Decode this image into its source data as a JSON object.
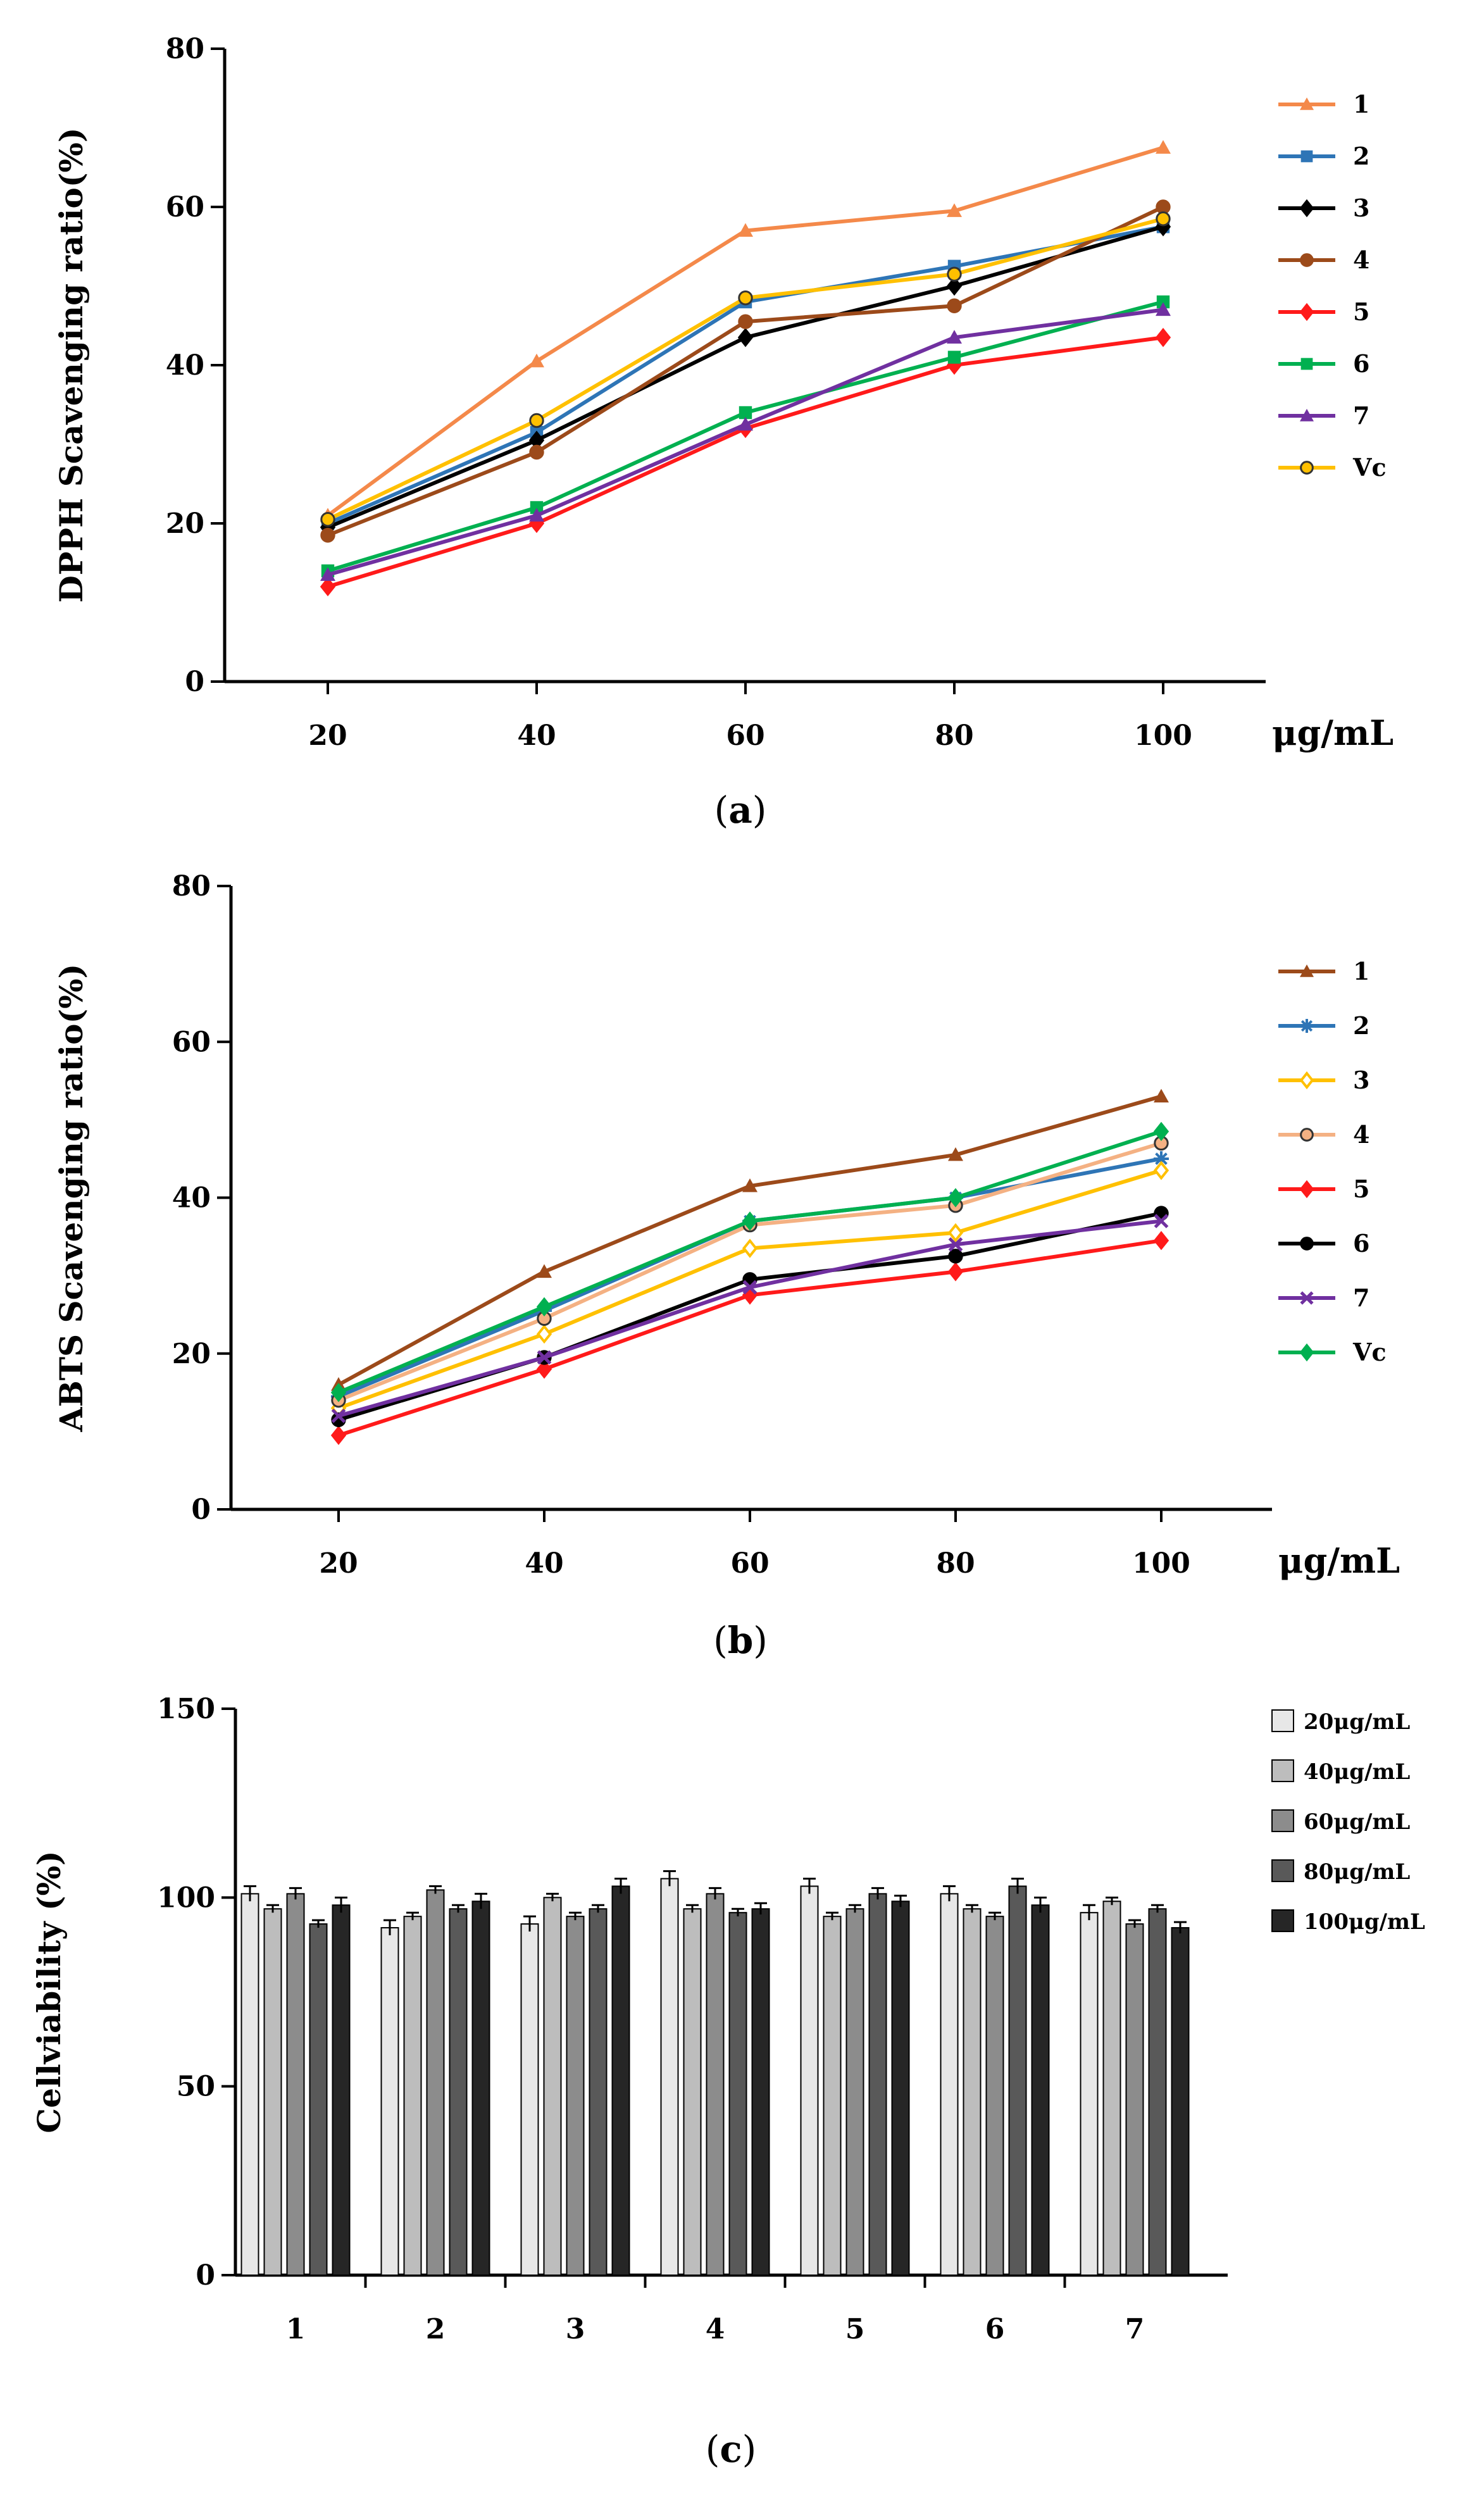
{
  "chart_data": [
    {
      "id": "a",
      "type": "line",
      "caption": "a",
      "ylabel": "DPPH Scavenging ratio(%)",
      "xlabel": "μg/mL",
      "x": [
        20,
        40,
        60,
        80,
        100
      ],
      "ylim": [
        0,
        80
      ],
      "yticks": [
        0,
        20,
        40,
        60,
        80
      ],
      "xticks": [
        "20",
        "40",
        "60",
        "80",
        "100"
      ],
      "legend_position": "right",
      "series": [
        {
          "name": "1",
          "color": "#F4894A",
          "marker": "triangle",
          "values": [
            21,
            40.5,
            57,
            59.5,
            67.5
          ]
        },
        {
          "name": "2",
          "color": "#2E75B6",
          "marker": "square",
          "values": [
            20,
            31.5,
            48,
            52.5,
            57.5
          ]
        },
        {
          "name": "3",
          "color": "#000000",
          "marker": "diamond",
          "values": [
            19.5,
            30.5,
            43.5,
            50,
            57.5
          ]
        },
        {
          "name": "4",
          "color": "#9C4A1A",
          "marker": "circle",
          "values": [
            18.5,
            29,
            45.5,
            47.5,
            60
          ]
        },
        {
          "name": "5",
          "color": "#FF1A1A",
          "marker": "diamond",
          "values": [
            12,
            20,
            32,
            40,
            43.5
          ]
        },
        {
          "name": "6",
          "color": "#00B050",
          "marker": "square",
          "values": [
            14,
            22,
            34,
            41,
            48
          ]
        },
        {
          "name": "7",
          "color": "#7030A0",
          "marker": "triangle",
          "values": [
            13.5,
            21,
            32.5,
            43.5,
            47
          ]
        },
        {
          "name": "Vc",
          "color": "#FFC000",
          "marker": "circle",
          "values": [
            20.5,
            33,
            48.5,
            51.5,
            58.5
          ]
        }
      ]
    },
    {
      "id": "b",
      "type": "line",
      "caption": "b",
      "ylabel": "ABTS Scavenging ratio(%)",
      "xlabel": "μg/mL",
      "x": [
        20,
        40,
        60,
        80,
        100
      ],
      "ylim": [
        0,
        80
      ],
      "yticks": [
        0,
        20,
        40,
        60,
        80
      ],
      "xticks": [
        "20",
        "40",
        "60",
        "80",
        "100"
      ],
      "legend_position": "right",
      "series": [
        {
          "name": "1",
          "color": "#9C4A1A",
          "marker": "triangle",
          "values": [
            16,
            30.5,
            41.5,
            45.5,
            53
          ]
        },
        {
          "name": "2",
          "color": "#2E75B6",
          "marker": "star",
          "values": [
            14.5,
            25.5,
            37,
            40,
            45
          ]
        },
        {
          "name": "3",
          "color": "#FFC000",
          "marker": "diamond",
          "values": [
            13,
            22.5,
            33.5,
            35.5,
            43.5
          ]
        },
        {
          "name": "4",
          "color": "#F4B183",
          "marker": "circle",
          "values": [
            14,
            24.5,
            36.5,
            39,
            47
          ]
        },
        {
          "name": "5",
          "color": "#FF1A1A",
          "marker": "diamond",
          "values": [
            9.5,
            18,
            27.5,
            30.5,
            34.5
          ]
        },
        {
          "name": "6",
          "color": "#000000",
          "marker": "circle",
          "values": [
            11.5,
            19.5,
            29.5,
            32.5,
            38
          ]
        },
        {
          "name": "7",
          "color": "#7030A0",
          "marker": "x",
          "values": [
            12,
            19.5,
            28.5,
            34,
            37
          ]
        },
        {
          "name": "Vc",
          "color": "#00B050",
          "marker": "diamond",
          "values": [
            15,
            26,
            37,
            40,
            48.5
          ]
        }
      ]
    },
    {
      "id": "c",
      "type": "bar",
      "caption": "c",
      "ylabel": "Cellviability (%)",
      "categories": [
        "1",
        "2",
        "3",
        "4",
        "5",
        "6",
        "7"
      ],
      "ylim": [
        0,
        150
      ],
      "yticks": [
        0,
        50,
        100,
        150
      ],
      "legend_position": "right",
      "series": [
        {
          "name": "20μg/mL",
          "color": "#E7E7E7",
          "values": [
            101,
            92,
            93,
            105,
            103,
            101,
            96
          ],
          "errors": [
            2,
            2,
            2,
            2,
            2,
            2,
            2
          ]
        },
        {
          "name": "40μg/mL",
          "color": "#BDBDBD",
          "values": [
            97,
            95,
            100,
            97,
            95,
            97,
            99
          ],
          "errors": [
            1,
            1,
            1,
            1,
            1,
            1,
            1
          ]
        },
        {
          "name": "60μg/mL",
          "color": "#8C8C8C",
          "values": [
            101,
            102,
            95,
            101,
            97,
            95,
            93
          ],
          "errors": [
            1.5,
            1,
            1,
            1.5,
            1,
            1,
            1
          ]
        },
        {
          "name": "80μg/mL",
          "color": "#595959",
          "values": [
            93,
            97,
            97,
            96,
            101,
            103,
            97
          ],
          "errors": [
            1,
            1,
            1,
            1,
            1.5,
            2,
            1
          ]
        },
        {
          "name": "100μg/mL",
          "color": "#262626",
          "values": [
            98,
            99,
            103,
            97,
            99,
            98,
            92
          ],
          "errors": [
            2,
            2,
            2,
            1.5,
            1.5,
            2,
            1.5
          ]
        }
      ]
    }
  ]
}
